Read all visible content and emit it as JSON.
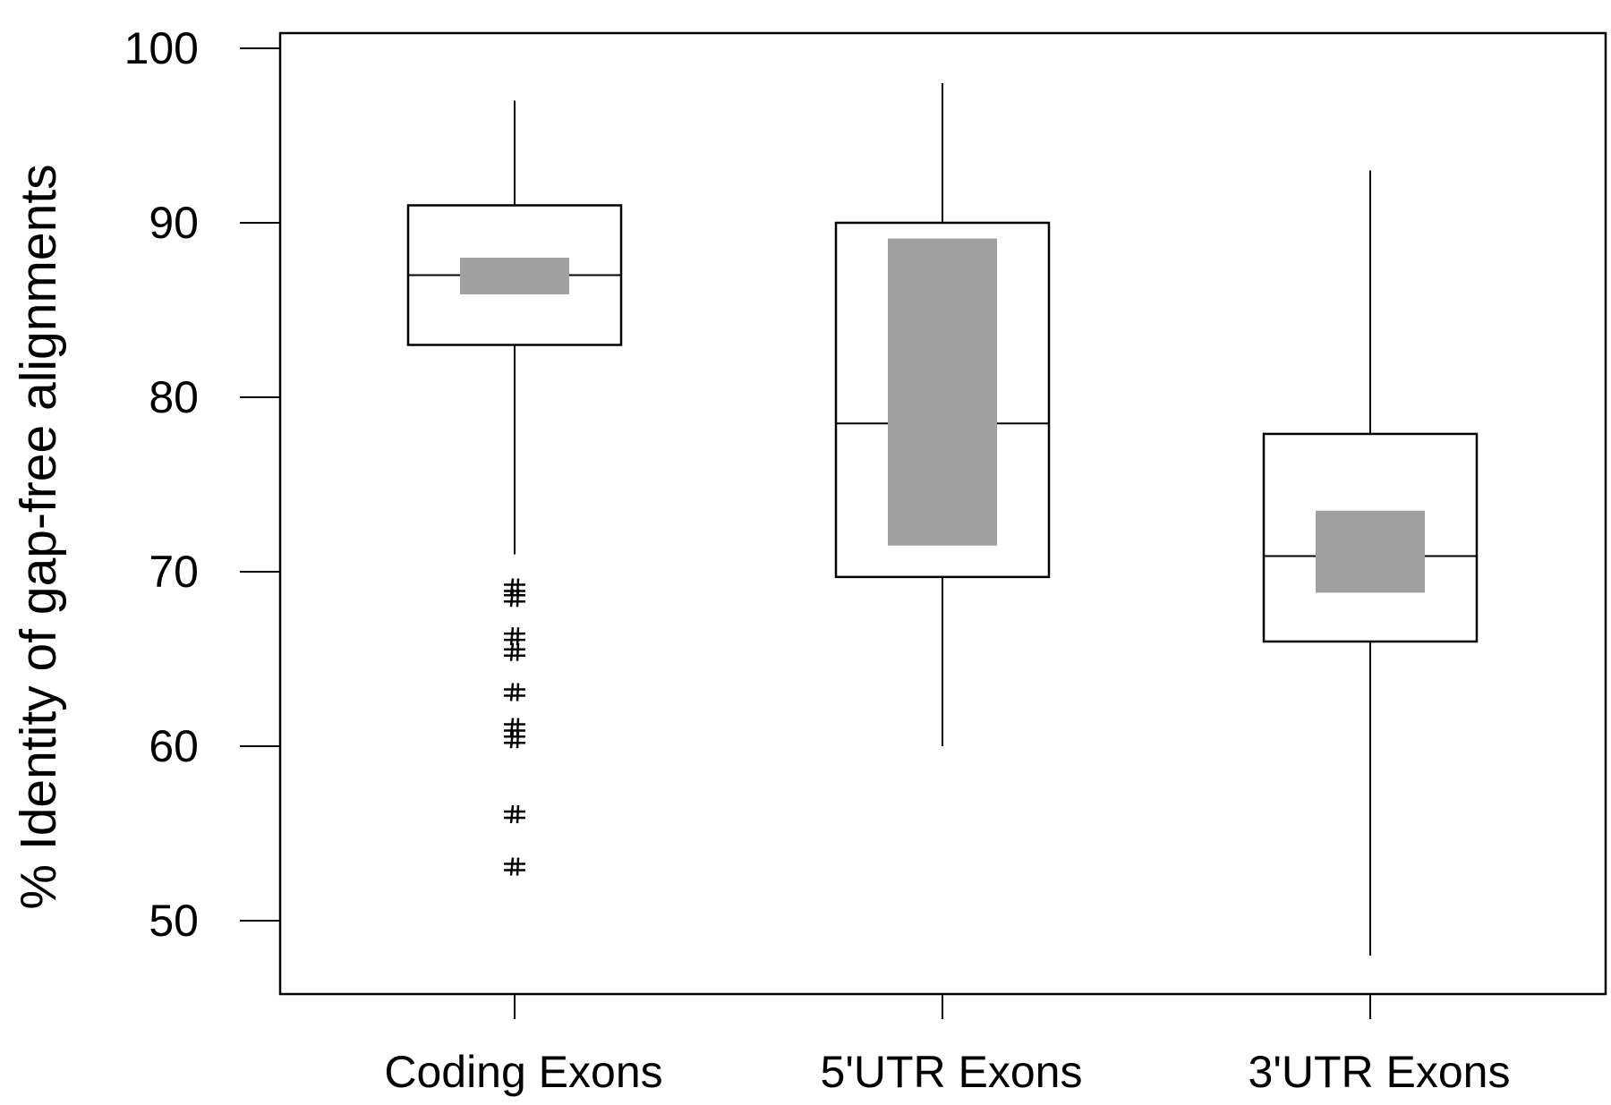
{
  "chart_data": {
    "type": "box",
    "title": "",
    "xlabel": "",
    "ylabel": "% Identity of gap-free alignments",
    "ylim": [
      45.8,
      101
    ],
    "yticks": [
      50,
      60,
      70,
      80,
      90,
      100
    ],
    "ytick_labels": [
      "50",
      "60",
      "70",
      "80",
      "90",
      "100"
    ],
    "grid": false,
    "categories": [
      "Coding Exons",
      "5'UTR Exons",
      "3'UTR Exons"
    ],
    "boxes": [
      {
        "name": "Coding Exons",
        "whisker_low": 71,
        "q1": 83,
        "median": 87,
        "q3": 91,
        "whisker_high": 97,
        "ci_low": 85.9,
        "ci_high": 88,
        "outliers": [
          69.1,
          68.5,
          66.3,
          65.4,
          63.1,
          61.1,
          60.4,
          56.1,
          53.1
        ]
      },
      {
        "name": "5'UTR Exons",
        "whisker_low": 60,
        "q1": 69.7,
        "median": 78.5,
        "q3": 90,
        "whisker_high": 98,
        "ci_low": 71.5,
        "ci_high": 89.1,
        "outliers": []
      },
      {
        "name": "3'UTR Exons",
        "whisker_low": 48,
        "q1": 66,
        "median": 70.9,
        "q3": 77.9,
        "whisker_high": 93,
        "ci_low": 68.8,
        "ci_high": 73.5,
        "outliers": []
      }
    ],
    "outlier_marker": "#",
    "colors": {
      "box_fill": "#ffffff",
      "ci_fill": "#a0a0a0",
      "line": "#000000"
    }
  }
}
